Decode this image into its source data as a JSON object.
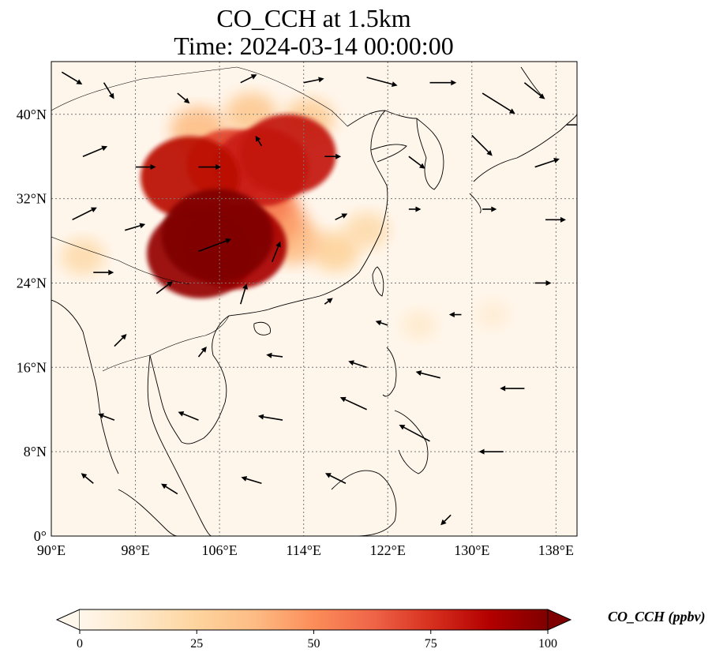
{
  "title": {
    "line1": "CO_CCH at 1.5km",
    "line2": "Time: 2024-03-14 00:00:00"
  },
  "map": {
    "projection": "PlateCarree",
    "lon_range": [
      90,
      140
    ],
    "lat_range": [
      0,
      45
    ],
    "gridlines": "dotted",
    "x_ticks": [
      "90°E",
      "98°E",
      "106°E",
      "114°E",
      "122°E",
      "130°E",
      "138°E"
    ],
    "x_tick_values": [
      90,
      98,
      106,
      114,
      122,
      130,
      138
    ],
    "y_ticks": [
      "0°",
      "8°N",
      "16°N",
      "24°N",
      "32°N",
      "40°N"
    ],
    "y_tick_values": [
      0,
      8,
      16,
      24,
      32,
      40
    ],
    "variable": "CO_CCH",
    "level": "1.5km",
    "overlay": "wind vectors"
  },
  "colorbar": {
    "label": "CO_CCH (ppbv)",
    "colormap": "OrRd",
    "min": 0,
    "max": 100,
    "extend": "both",
    "ticks": [
      "0",
      "25",
      "50",
      "75",
      "100"
    ],
    "tick_values": [
      0,
      25,
      50,
      75,
      100
    ],
    "colors": [
      "#fff7ec",
      "#fee8c8",
      "#fdd49e",
      "#fdbb84",
      "#fc8d59",
      "#ef6548",
      "#d7301f",
      "#b30000",
      "#7f0000"
    ]
  },
  "chart_data": {
    "type": "heatmap",
    "title": "CO_CCH at 1.5km",
    "subtitle": "Time: 2024-03-14 00:00:00",
    "xlim": [
      90,
      140
    ],
    "ylim": [
      0,
      45
    ],
    "plumes": [
      {
        "lon": 105.8,
        "lat": 28.5,
        "value": 100
      },
      {
        "lon": 104.2,
        "lat": 26.8,
        "value": 95
      },
      {
        "lon": 107.5,
        "lat": 27.5,
        "value": 90
      },
      {
        "lon": 103.2,
        "lat": 34.0,
        "value": 85
      },
      {
        "lon": 110.0,
        "lat": 35.0,
        "value": 80
      },
      {
        "lon": 112.5,
        "lat": 36.2,
        "value": 82
      },
      {
        "lon": 107.0,
        "lat": 35.2,
        "value": 70
      },
      {
        "lon": 109.5,
        "lat": 32.0,
        "value": 55
      },
      {
        "lon": 111.0,
        "lat": 30.0,
        "value": 45
      },
      {
        "lon": 104.0,
        "lat": 38.5,
        "value": 35
      },
      {
        "lon": 109.0,
        "lat": 40.0,
        "value": 30
      },
      {
        "lon": 114.5,
        "lat": 39.5,
        "value": 28
      },
      {
        "lon": 113.0,
        "lat": 28.0,
        "value": 35
      },
      {
        "lon": 117.0,
        "lat": 27.0,
        "value": 25
      },
      {
        "lon": 120.0,
        "lat": 29.0,
        "value": 20
      },
      {
        "lon": 93.0,
        "lat": 26.5,
        "value": 20
      },
      {
        "lon": 125.0,
        "lat": 20.0,
        "value": 10
      },
      {
        "lon": 132.0,
        "lat": 21.0,
        "value": 8
      }
    ],
    "wind_vectors": [
      {
        "lon": 91,
        "lat": 44,
        "u": 1.0,
        "v": -0.6
      },
      {
        "lon": 95,
        "lat": 43,
        "u": 0.5,
        "v": -0.8
      },
      {
        "lon": 102,
        "lat": 42,
        "u": 0.6,
        "v": -0.5
      },
      {
        "lon": 108,
        "lat": 43,
        "u": 0.8,
        "v": 0.4
      },
      {
        "lon": 114,
        "lat": 43,
        "u": 1.0,
        "v": 0.2
      },
      {
        "lon": 120,
        "lat": 43.5,
        "u": 1.5,
        "v": -0.4
      },
      {
        "lon": 126,
        "lat": 43,
        "u": 1.3,
        "v": 0.0
      },
      {
        "lon": 131,
        "lat": 42,
        "u": 1.6,
        "v": -1.0
      },
      {
        "lon": 135,
        "lat": 43,
        "u": 1.0,
        "v": -0.8
      },
      {
        "lon": 139,
        "lat": 39,
        "u": 1.2,
        "v": 0.0
      },
      {
        "lon": 93,
        "lat": 36,
        "u": 1.2,
        "v": 0.5
      },
      {
        "lon": 98,
        "lat": 35,
        "u": 1.0,
        "v": 0.0
      },
      {
        "lon": 104,
        "lat": 35,
        "u": 1.1,
        "v": 0.0
      },
      {
        "lon": 110,
        "lat": 37,
        "u": -0.3,
        "v": 0.5
      },
      {
        "lon": 116,
        "lat": 36,
        "u": 0.8,
        "v": 0.0
      },
      {
        "lon": 124,
        "lat": 36,
        "u": 0.8,
        "v": -0.6
      },
      {
        "lon": 130,
        "lat": 38,
        "u": 1.0,
        "v": -1.0
      },
      {
        "lon": 136,
        "lat": 35,
        "u": 1.2,
        "v": 0.4
      },
      {
        "lon": 92,
        "lat": 30,
        "u": 1.2,
        "v": 0.6
      },
      {
        "lon": 97,
        "lat": 29,
        "u": 1.0,
        "v": 0.3
      },
      {
        "lon": 104,
        "lat": 27,
        "u": 1.6,
        "v": 0.6
      },
      {
        "lon": 111,
        "lat": 26,
        "u": 0.4,
        "v": 1.0
      },
      {
        "lon": 117,
        "lat": 30,
        "u": 0.6,
        "v": 0.3
      },
      {
        "lon": 124,
        "lat": 31,
        "u": 0.6,
        "v": 0.0
      },
      {
        "lon": 131,
        "lat": 31,
        "u": 0.7,
        "v": 0.0
      },
      {
        "lon": 137,
        "lat": 30,
        "u": 1.0,
        "v": 0.0
      },
      {
        "lon": 94,
        "lat": 25,
        "u": 1.0,
        "v": 0.0
      },
      {
        "lon": 100,
        "lat": 23,
        "u": 0.8,
        "v": 0.6
      },
      {
        "lon": 108,
        "lat": 22,
        "u": 0.3,
        "v": 1.0
      },
      {
        "lon": 116,
        "lat": 22,
        "u": 0.4,
        "v": 0.3
      },
      {
        "lon": 122,
        "lat": 20,
        "u": -0.6,
        "v": 0.2
      },
      {
        "lon": 129,
        "lat": 21,
        "u": -0.6,
        "v": 0.0
      },
      {
        "lon": 136,
        "lat": 24,
        "u": 0.8,
        "v": 0.0
      },
      {
        "lon": 96,
        "lat": 18,
        "u": 0.6,
        "v": 0.6
      },
      {
        "lon": 104,
        "lat": 17,
        "u": 0.4,
        "v": 0.5
      },
      {
        "lon": 112,
        "lat": 17,
        "u": -0.8,
        "v": 0.1
      },
      {
        "lon": 120,
        "lat": 16,
        "u": -0.9,
        "v": 0.3
      },
      {
        "lon": 127,
        "lat": 15,
        "u": -1.2,
        "v": 0.3
      },
      {
        "lon": 135,
        "lat": 14,
        "u": -1.2,
        "v": 0.0
      },
      {
        "lon": 96,
        "lat": 11,
        "u": -0.8,
        "v": 0.3
      },
      {
        "lon": 104,
        "lat": 11,
        "u": -1.0,
        "v": 0.4
      },
      {
        "lon": 112,
        "lat": 11,
        "u": -1.2,
        "v": 0.2
      },
      {
        "lon": 120,
        "lat": 12,
        "u": -1.3,
        "v": 0.6
      },
      {
        "lon": 126,
        "lat": 9,
        "u": -1.5,
        "v": 0.8
      },
      {
        "lon": 133,
        "lat": 8,
        "u": -1.2,
        "v": 0.0
      },
      {
        "lon": 94,
        "lat": 5,
        "u": -0.6,
        "v": 0.5
      },
      {
        "lon": 102,
        "lat": 4,
        "u": -0.8,
        "v": 0.5
      },
      {
        "lon": 110,
        "lat": 5,
        "u": -1.0,
        "v": 0.3
      },
      {
        "lon": 118,
        "lat": 5,
        "u": -1.0,
        "v": 0.5
      },
      {
        "lon": 128,
        "lat": 2,
        "u": -0.5,
        "v": -0.5
      }
    ]
  }
}
